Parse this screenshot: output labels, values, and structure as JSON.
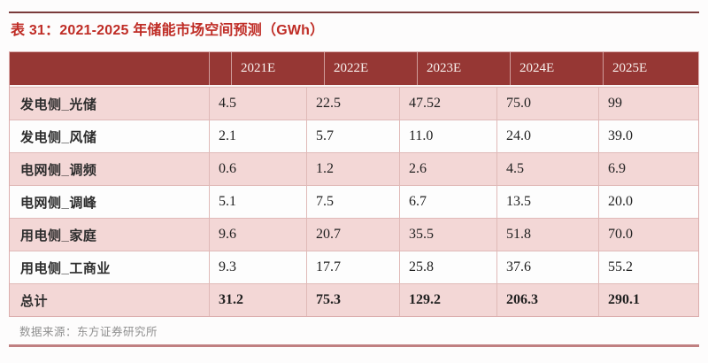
{
  "page": {
    "title": "表 31：2021-2025 年储能市场空间预测（GWh）",
    "source_note": "数据来源：东方证券研究所"
  },
  "chart_data": {
    "type": "table",
    "title": "表 31：2021-2025 年储能市场空间预测（GWh）",
    "columns": [
      "2021E",
      "2022E",
      "2023E",
      "2024E",
      "2025E"
    ],
    "rows": [
      {
        "label": "发电侧_光储",
        "values": [
          "4.5",
          "22.5",
          "47.52",
          "75.0",
          "99"
        ]
      },
      {
        "label": "发电侧_风储",
        "values": [
          "2.1",
          "5.7",
          "11.0",
          "24.0",
          "39.0"
        ]
      },
      {
        "label": "电网侧_调频",
        "values": [
          "0.6",
          "1.2",
          "2.6",
          "4.5",
          "6.9"
        ]
      },
      {
        "label": "电网侧_调峰",
        "values": [
          "5.1",
          "7.5",
          "6.7",
          "13.5",
          "20.0"
        ]
      },
      {
        "label": "用电侧_家庭",
        "values": [
          "9.6",
          "20.7",
          "35.5",
          "51.8",
          "70.0"
        ]
      },
      {
        "label": "用电侧_工商业",
        "values": [
          "9.3",
          "17.7",
          "25.8",
          "37.6",
          "55.2"
        ]
      },
      {
        "label": "总计",
        "values": [
          "31.2",
          "75.3",
          "129.2",
          "206.3",
          "290.1"
        ],
        "emphasis": "bold"
      }
    ],
    "source": "数据来源：东方证券研究所"
  },
  "colors": {
    "header_bg": "#963734",
    "header_text": "#f7efec",
    "row_pink": "#f3d7d6",
    "row_white": "#fdfdfd",
    "title_red": "#bf2c25",
    "top_rule": "#7a3b3b",
    "bottom_rule": "#c08081",
    "border": "#dcaeae",
    "grid_line": "#e0bab8",
    "source_text": "#909090",
    "value_text": "#1f1f1f"
  }
}
